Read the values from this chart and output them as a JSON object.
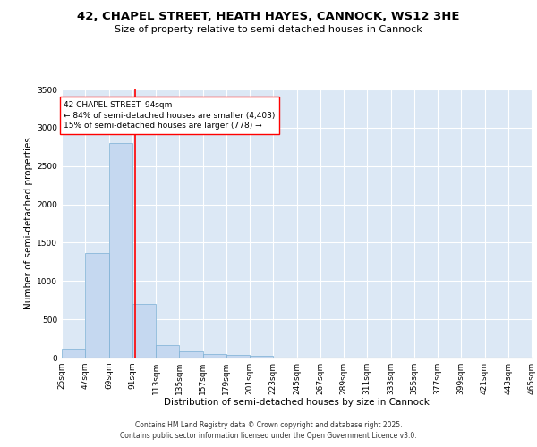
{
  "title_line1": "42, CHAPEL STREET, HEATH HAYES, CANNOCK, WS12 3HE",
  "title_line2": "Size of property relative to semi-detached houses in Cannock",
  "xlabel": "Distribution of semi-detached houses by size in Cannock",
  "ylabel": "Number of semi-detached properties",
  "bin_labels": [
    "25sqm",
    "47sqm",
    "69sqm",
    "91sqm",
    "113sqm",
    "135sqm",
    "157sqm",
    "179sqm",
    "201sqm",
    "223sqm",
    "245sqm",
    "267sqm",
    "289sqm",
    "311sqm",
    "333sqm",
    "355sqm",
    "377sqm",
    "399sqm",
    "421sqm",
    "443sqm",
    "465sqm"
  ],
  "bin_edges": [
    25,
    47,
    69,
    91,
    113,
    135,
    157,
    179,
    201,
    223,
    245,
    267,
    289,
    311,
    333,
    355,
    377,
    399,
    421,
    443,
    465
  ],
  "bar_heights": [
    120,
    1370,
    2800,
    700,
    160,
    80,
    45,
    30,
    20,
    0,
    0,
    0,
    0,
    0,
    0,
    0,
    0,
    0,
    0,
    0
  ],
  "bar_color": "#c5d8f0",
  "bar_edge_color": "#7aafd4",
  "bg_color": "#dce8f5",
  "grid_color": "#ffffff",
  "vline_x": 94,
  "vline_color": "red",
  "annotation_text": "42 CHAPEL STREET: 94sqm\n← 84% of semi-detached houses are smaller (4,403)\n15% of semi-detached houses are larger (778) →",
  "annotation_box_color": "red",
  "ylim": [
    0,
    3500
  ],
  "yticks": [
    0,
    500,
    1000,
    1500,
    2000,
    2500,
    3000,
    3500
  ],
  "footer_line1": "Contains HM Land Registry data © Crown copyright and database right 2025.",
  "footer_line2": "Contains public sector information licensed under the Open Government Licence v3.0.",
  "title_fontsize": 9.5,
  "subtitle_fontsize": 8,
  "axis_label_fontsize": 7.5,
  "tick_fontsize": 6.5,
  "annotation_fontsize": 6.5,
  "footer_fontsize": 5.5
}
